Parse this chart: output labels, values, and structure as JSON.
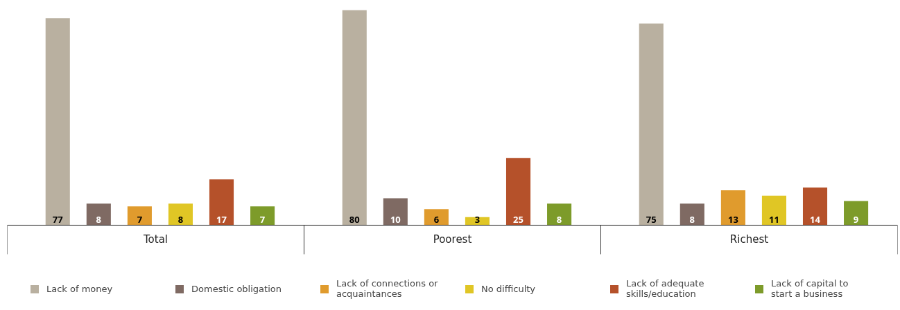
{
  "chart_data": {
    "type": "bar",
    "categories": [
      "Total",
      "Poorest",
      "Richest"
    ],
    "series": [
      {
        "name": "Lack of money",
        "color": "#b9b0a0",
        "values": [
          77,
          80,
          75
        ]
      },
      {
        "name": "Domestic obligation",
        "color": "#7f6a63",
        "values": [
          8,
          10,
          8
        ]
      },
      {
        "name": "Lack of connections or acquaintances",
        "color": "#e09b2d",
        "values": [
          7,
          6,
          13
        ]
      },
      {
        "name": "No difficulty",
        "color": "#e0c625",
        "values": [
          8,
          3,
          11
        ]
      },
      {
        "name": "Lack of adequate skills/education",
        "color": "#b5512a",
        "values": [
          17,
          25,
          14
        ]
      },
      {
        "name": "Lack of capital to start a business",
        "color": "#7d9b2a",
        "values": [
          7,
          8,
          9
        ]
      }
    ],
    "data_labels": true,
    "legend": "bottom"
  }
}
